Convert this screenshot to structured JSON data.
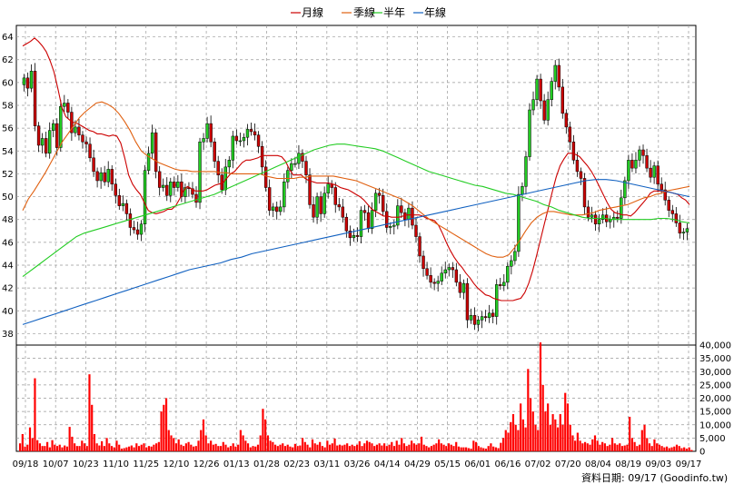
{
  "chart_data": [
    {
      "type": "candlestick",
      "legend": [
        {
          "name": "月線",
          "color": "#cc0000"
        },
        {
          "name": "季線",
          "color": "#e06010"
        },
        {
          "name": "半年",
          "color": "#22cc22"
        },
        {
          "name": "年線",
          "color": "#1060c0"
        }
      ],
      "ylim": [
        37,
        65
      ],
      "y_ticks": [
        38,
        40,
        42,
        44,
        46,
        48,
        50,
        52,
        54,
        56,
        58,
        60,
        62,
        64
      ],
      "x_tick_labels": [
        "09/18",
        "10/07",
        "10/23",
        "11/10",
        "11/25",
        "12/10",
        "12/26",
        "01/13",
        "01/28",
        "02/23",
        "03/11",
        "03/26",
        "04/14",
        "04/29",
        "05/15",
        "06/01",
        "06/16",
        "07/02",
        "07/20",
        "08/04",
        "08/19",
        "09/03",
        "09/17"
      ],
      "grid": true,
      "up_color": "#22cc22",
      "down_color": "#cc0000",
      "closes": [
        60.4,
        59.5,
        61,
        56.2,
        54.5,
        55.1,
        53.8,
        55.8,
        56.4,
        54.3,
        57.9,
        58.2,
        57.4,
        55.6,
        56.1,
        55.4,
        54.8,
        54.6,
        53.4,
        52.2,
        51.4,
        52.1,
        51.3,
        52.4,
        51.1,
        50.1,
        49.2,
        49.4,
        48.5,
        47.3,
        47.1,
        46.7,
        47.6,
        52.3,
        53.8,
        55.6,
        52.2,
        50.8,
        51,
        50.1,
        51.3,
        50.8,
        51.3,
        50,
        50.8,
        50.7,
        50.2,
        49.5,
        54.8,
        55.1,
        56.4,
        54.8,
        53.1,
        51.9,
        50.6,
        52.6,
        53.2,
        55.3,
        54.9,
        54.9,
        55.2,
        55.9,
        55.7,
        55.4,
        54.4,
        52.6,
        50.8,
        48.8,
        49.1,
        48.7,
        49.1,
        51.3,
        52.3,
        52.9,
        52.9,
        53.8,
        53.1,
        51.9,
        49.3,
        48.2,
        50,
        48.5,
        50.3,
        51.1,
        50.8,
        49.3,
        49.1,
        48.2,
        47,
        46.4,
        46.6,
        46.5,
        48.8,
        48.6,
        47.2,
        48.8,
        50.3,
        50.1,
        48.7,
        47.3,
        47.4,
        47.5,
        49.2,
        48.6,
        48,
        49,
        47.5,
        46.5,
        44.8,
        43.7,
        43.1,
        42.5,
        42.4,
        42.6,
        43.3,
        43.6,
        43.8,
        43.6,
        42.5,
        41.6,
        42.4,
        39.2,
        39.6,
        38.8,
        39.2,
        39.5,
        39.4,
        39.8,
        39.5,
        42.3,
        42.2,
        42.5,
        43.9,
        44.4,
        45.2,
        50.2,
        50.9,
        53.5,
        57.6,
        58.5,
        60.3,
        58.4,
        56.7,
        58.5,
        60.1,
        61.5,
        59.6,
        57.3,
        56.1,
        54.8,
        53.2,
        52.2,
        51.6,
        49.1,
        48.2,
        48.4,
        47.6,
        48,
        48.4,
        47.8,
        48,
        48.2,
        48.1,
        49.9,
        51.4,
        53.2,
        52.5,
        53.2,
        54.1,
        53.6,
        52.5,
        51.7,
        52.7,
        51.1,
        50.6,
        49.7,
        48.8,
        48.5,
        47.7,
        46.8,
        46.9,
        47.2
      ],
      "ma_month": [
        63.2,
        63.4,
        63.6,
        63.9,
        63.6,
        63.2,
        62.7,
        61.9,
        60.9,
        59.4,
        57.8,
        57,
        56.7,
        56.5,
        56.4,
        56.2,
        56,
        55.8,
        55.7,
        55.5,
        55.5,
        55.4,
        55.3,
        55.4,
        55.3,
        54.7,
        53.4,
        51.9,
        51.1,
        50.6,
        50.2,
        49.5,
        48.8,
        48.6,
        48.5,
        48.6,
        48.7,
        48.9,
        48.9,
        49.2,
        49.8,
        50.5,
        50.9,
        50.7,
        50.5,
        50.5,
        50.5,
        50.6,
        50.8,
        51,
        51.1,
        51.2,
        51.6,
        52,
        52.2,
        52.6,
        53,
        53.2,
        53.2,
        53.3,
        53.4,
        53.6,
        53.6,
        53.6,
        53.6,
        53.6,
        53.5,
        53.1,
        52.4,
        51.9,
        51.9,
        51.9,
        51.6,
        51.4,
        51.3,
        51.2,
        51.2,
        51.2,
        51.2,
        51.1,
        51,
        50.8,
        50.7,
        50.6,
        50.4,
        50.2,
        50,
        49.7,
        49.3,
        48.9,
        48.7,
        48.5,
        48.3,
        48.3,
        48.2,
        48.2,
        48.2,
        48.3,
        48.4,
        48.4,
        48.4,
        48.4,
        48.3,
        48.1,
        48,
        47.9,
        47.5,
        46.8,
        46,
        45.3,
        44.7,
        44.2,
        43.8,
        43.3,
        42.9,
        42.4,
        42,
        41.7,
        41.4,
        41.3,
        41.1,
        41,
        40.9,
        40.9,
        40.9,
        40.9,
        41,
        41.1,
        41.6,
        42.4,
        43.5,
        44.8,
        46.2,
        47.6,
        49,
        50.4,
        51.7,
        52.7,
        53.3,
        53.8,
        53.8,
        53.7,
        53.5,
        53.1,
        52.7,
        52.2,
        51.6,
        50.9,
        50.2,
        49.5,
        48.9,
        48.6,
        48.5,
        48.4,
        48.4,
        48.3,
        48.6,
        49,
        49.4,
        49.8,
        50.3,
        50.5,
        50.5,
        50.5,
        50.4,
        50.4,
        50.3,
        50.2,
        49.9,
        49.7,
        49.3
      ],
      "ma_quarter": [
        48.8,
        49.8,
        50.5,
        51.3,
        52.1,
        53,
        53.9,
        54.8,
        55.5,
        56.2,
        56.9,
        57.4,
        57.8,
        58.2,
        58.3,
        58.1,
        57.8,
        57.3,
        56.6,
        55.8,
        54.8,
        54,
        53.6,
        53.3,
        53,
        52.8,
        52.6,
        52.4,
        52.3,
        52.3,
        52.2,
        52.2,
        52.2,
        52.2,
        52.2,
        52.1,
        52.1,
        52,
        52,
        52,
        52,
        52,
        52,
        51.8,
        51.7,
        51.6,
        51.6,
        51.6,
        51.6,
        51.7,
        51.7,
        51.8,
        51.8,
        51.8,
        51.8,
        51.8,
        51.7,
        51.6,
        51.5,
        51.4,
        51.2,
        51,
        50.8,
        50.6,
        50.4,
        50.2,
        50,
        49.8,
        49.5,
        49.2,
        48.8,
        48.4,
        48,
        47.7,
        47.4,
        47.1,
        46.8,
        46.5,
        46.2,
        45.9,
        45.6,
        45.3,
        45,
        44.8,
        44.7,
        44.7,
        44.9,
        45.5,
        46.2,
        47,
        47.7,
        48.2,
        48.5,
        48.7,
        48.7,
        48.6,
        48.5,
        48.4,
        48.4,
        48.4,
        48.5,
        48.6,
        48.8,
        48.9,
        49,
        49.1,
        49.2,
        49.3,
        49.5,
        49.7,
        49.9,
        50,
        50.2,
        50.3,
        50.5,
        50.6,
        50.7,
        50.8,
        50.9
      ],
      "ma_half": [
        43,
        43.5,
        44,
        44.5,
        45,
        45.5,
        46,
        46.5,
        46.8,
        47,
        47.2,
        47.4,
        47.6,
        47.8,
        48,
        48.2,
        48.4,
        48.6,
        48.8,
        49,
        49.2,
        49.4,
        49.6,
        49.8,
        50,
        50.2,
        50.5,
        50.8,
        51.1,
        51.4,
        51.7,
        52,
        52.3,
        52.6,
        52.9,
        53.2,
        53.5,
        53.8,
        54.1,
        54.3,
        54.5,
        54.6,
        54.6,
        54.5,
        54.4,
        54.3,
        54.2,
        54,
        53.7,
        53.4,
        53.1,
        52.8,
        52.5,
        52.2,
        52,
        51.8,
        51.6,
        51.4,
        51.2,
        51,
        50.9,
        50.7,
        50.5,
        50.3,
        50.2,
        50,
        49.8,
        49.6,
        49.3,
        49.1,
        48.8,
        48.6,
        48.4,
        48.2,
        48.1,
        48.1,
        48.1,
        48,
        48,
        48,
        48,
        48,
        48,
        48.1,
        48.1,
        48,
        47.8,
        47.7
      ],
      "ma_year": [
        38.8,
        39.1,
        39.4,
        39.7,
        40,
        40.3,
        40.6,
        40.9,
        41.2,
        41.5,
        41.8,
        42.1,
        42.4,
        42.7,
        43,
        43.3,
        43.6,
        43.8,
        44,
        44.2,
        44.5,
        44.7,
        45,
        45.2,
        45.4,
        45.6,
        45.8,
        46,
        46.2,
        46.4,
        46.6,
        46.8,
        47,
        47.2,
        47.4,
        47.6,
        47.8,
        48,
        48.2,
        48.4,
        48.6,
        48.8,
        49,
        49.2,
        49.4,
        49.6,
        49.8,
        50,
        50.2,
        50.4,
        50.6,
        50.8,
        51,
        51.2,
        51.4,
        51.5,
        51.5,
        51.4,
        51.2,
        51,
        50.8,
        50.6,
        50.4,
        50.2,
        50
      ]
    },
    {
      "type": "bar",
      "color": "#ff0000",
      "ylim": [
        0,
        40000
      ],
      "y_tick_labels": [
        "0",
        "5,000",
        "10,000",
        "15,000",
        "20,000",
        "25,000",
        "30,000",
        "35,000",
        "40,000"
      ],
      "values": [
        3000,
        6500,
        1800,
        2500,
        9000,
        5000,
        27500,
        4200,
        3000,
        2000,
        2000,
        3500,
        1500,
        4200,
        2500,
        2000,
        2500,
        1500,
        2200,
        1800,
        9200,
        5500,
        3000,
        2000,
        2000,
        4000,
        3000,
        2000,
        29000,
        17500,
        6500,
        3000,
        2200,
        3800,
        2000,
        5000,
        3000,
        2000,
        1500,
        4000,
        2500,
        1000,
        1200,
        1500,
        1800,
        2200,
        1500,
        3000,
        2000,
        2500,
        3000,
        1500,
        2000,
        1800,
        2500,
        3000,
        3500,
        15000,
        17500,
        20000,
        8000,
        6000,
        5000,
        3000,
        4500,
        2500,
        2000,
        3000,
        3500,
        2500,
        1800,
        2000,
        4000,
        8000,
        12000,
        6000,
        3000,
        4000,
        2500,
        2800,
        2000,
        2000,
        3500,
        2500,
        1500,
        2000,
        3000,
        1800,
        2500,
        8000,
        6000,
        4000,
        3000,
        1500,
        2000,
        1800,
        2500,
        6000,
        16000,
        12000,
        6000,
        4000,
        3500,
        2500,
        2000,
        2500,
        3000,
        2000,
        2500,
        1800,
        1500,
        2800,
        2000,
        2200,
        5000,
        3500,
        2500,
        1500,
        4500,
        3000,
        2500,
        3500,
        2000,
        1500,
        4000,
        2500,
        3000,
        4800,
        2200,
        2500,
        2200,
        2500,
        3000,
        2000,
        2500,
        2000,
        2500,
        3800,
        2000,
        3000,
        4000,
        3500,
        3000,
        2000,
        2500,
        3000,
        2200,
        3000,
        2000,
        2500,
        3500,
        2000,
        4000,
        2500,
        5000,
        3000,
        2000,
        2500,
        4000,
        3000,
        2500,
        3000,
        5500,
        2500,
        2000,
        1500,
        2000,
        2500,
        3000,
        4500,
        3000,
        2500,
        2000,
        3000,
        2500,
        2000,
        3500,
        1800,
        1500,
        1500,
        1500,
        1200,
        1000,
        4000,
        3500,
        2000,
        1500,
        1200,
        1000,
        2000,
        3000,
        1800,
        1500,
        1200,
        3200,
        5000,
        8000,
        7000,
        11000,
        14000,
        10000,
        8000,
        18000,
        12000,
        9000,
        31000,
        20000,
        15000,
        10000,
        8000,
        41000,
        25000,
        15000,
        18000,
        10000,
        14000,
        12000,
        9000,
        14000,
        10000,
        22000,
        18000,
        10000,
        6000,
        4000,
        7000,
        4000,
        3000,
        3500,
        3000,
        2500,
        4500,
        6000,
        4000,
        2500,
        3500,
        3000,
        2000,
        2500,
        5000,
        3000,
        2500,
        3000,
        2000,
        2200,
        2500,
        13000,
        5000,
        3500,
        2000,
        2500,
        8000,
        10000,
        5000,
        3000,
        2000,
        4500,
        3000,
        2500,
        2000,
        1500,
        1800,
        1200,
        1500,
        1800,
        2500,
        2000,
        1200,
        1500,
        1000,
        1500,
        500
      ],
      "source_note": "資料日期: 09/17  (Goodinfo.tw)"
    }
  ]
}
